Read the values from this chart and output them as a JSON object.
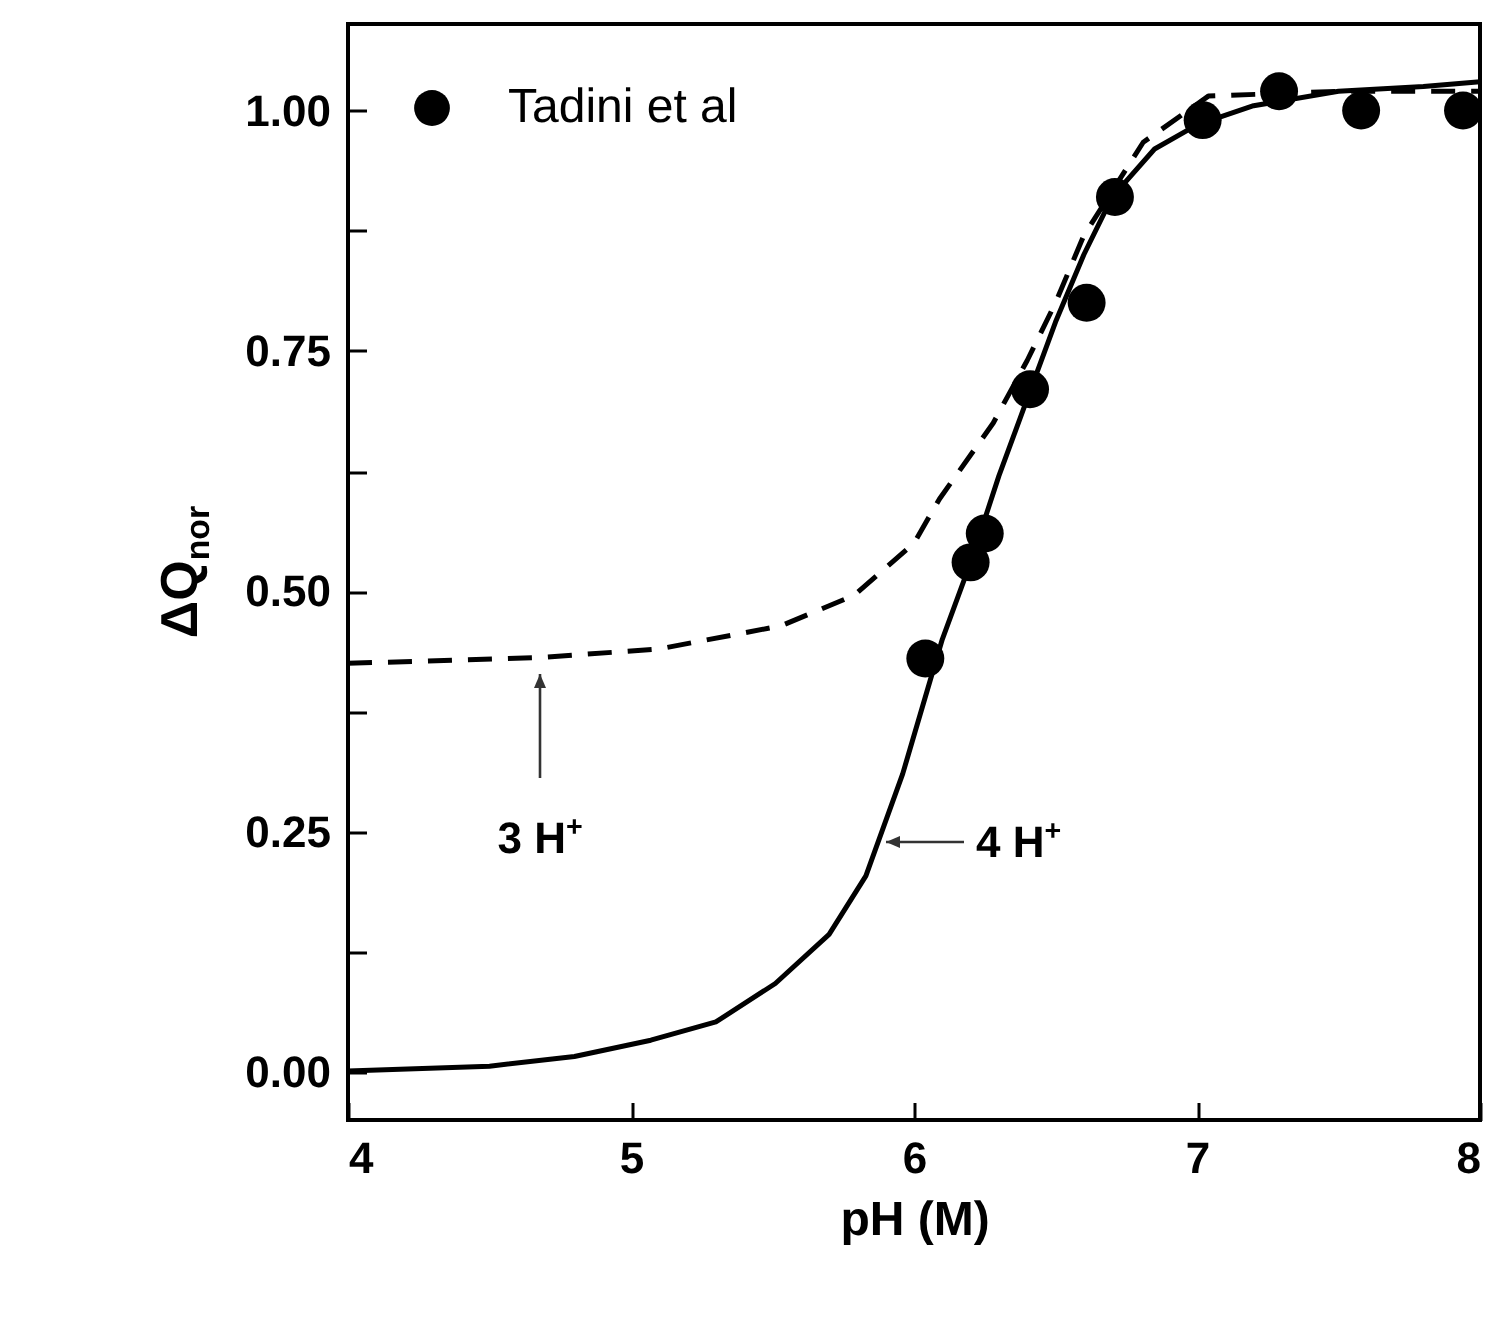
{
  "chart_data": {
    "type": "line",
    "xlabel": "pH (M)",
    "ylabel": "ΔQ$_{nor}$",
    "xlim": [
      4,
      8
    ],
    "xticks": [
      4,
      5,
      6,
      7,
      8
    ],
    "ylim": [
      -0.05,
      1.09
    ],
    "yticks": [
      {
        "value": 0,
        "label": "0.00"
      },
      {
        "value": 0.125,
        "label": null
      },
      0.25,
      {
        "value": 0.375,
        "label": null
      },
      {
        "value": 0.5,
        "label": "0.50"
      },
      {
        "value": 0.625,
        "label": null
      },
      0.75,
      {
        "value": 0.875,
        "label": null
      },
      {
        "value": 1,
        "label": "1.00"
      }
    ],
    "grid": false,
    "legend": "top left",
    "series": [
      {
        "name": "Tadini et al",
        "type": "scatter",
        "marker": "circle",
        "color": "#000000",
        "x": [
          6.04,
          6.2,
          6.25,
          6.41,
          6.61,
          6.71,
          7.02,
          7.29,
          7.58,
          7.94
        ],
        "values": [
          0.43,
          0.53,
          0.56,
          0.71,
          0.8,
          0.91,
          0.99,
          1.02,
          1.0,
          1.0
        ]
      },
      {
        "type": "line",
        "line_style": "solid",
        "color": "#000000",
        "x": [
          4,
          4.5,
          4.8,
          5.07,
          5.3,
          5.51,
          5.7,
          5.83,
          5.96,
          6.1,
          6.2,
          6.3,
          6.4,
          6.5,
          6.6,
          6.7,
          6.85,
          7.0,
          7.2,
          7.5,
          7.8,
          8
        ],
        "values": [
          0.001,
          0.006,
          0.016,
          0.033,
          0.052,
          0.092,
          0.143,
          0.204,
          0.31,
          0.45,
          0.53,
          0.62,
          0.7,
          0.78,
          0.85,
          0.91,
          0.96,
          0.985,
          1.005,
          1.02,
          1.025,
          1.03
        ]
      },
      {
        "type": "line",
        "line_style": "dashed",
        "color": "#000000",
        "x": [
          4,
          4.68,
          5.1,
          5.53,
          5.79,
          6.0,
          6.09,
          6.28,
          6.4,
          6.5,
          6.6,
          6.81,
          7.04,
          7.5,
          8
        ],
        "values": [
          0.425,
          0.431,
          0.44,
          0.464,
          0.496,
          0.55,
          0.596,
          0.675,
          0.74,
          0.8,
          0.87,
          0.967,
          1.015,
          1.02,
          1.02
        ]
      }
    ],
    "annotations": [
      {
        "text": "3 H$^{+}$",
        "x": 4.68,
        "y": 0.431
      },
      {
        "text": "4 H$^{+}$",
        "x": 5.88,
        "y": 0.24
      }
    ]
  }
}
